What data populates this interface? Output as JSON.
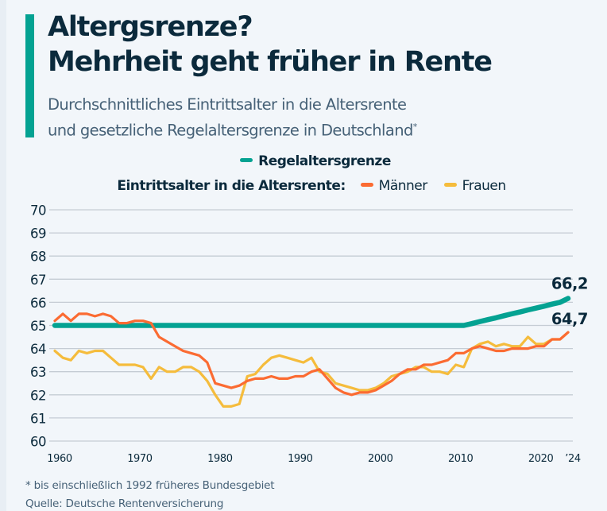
{
  "header": {
    "title_line1": "Altergsrenze?",
    "title_line2": "Mehrheit geht früher in Rente",
    "subtitle_line1": "Durchschnittliches Eintrittsalter in die Altersrente",
    "subtitle_line2": "und gesetzliche Regelaltersgrenze in Deutschland",
    "subtitle_mark": "*"
  },
  "legend": {
    "regel_label": "Regelaltersgrenze",
    "group_label": "Eintrittsalter in die Altersrente:",
    "maenner_label": "Männer",
    "frauen_label": "Frauen"
  },
  "colors": {
    "accent": "#04a292",
    "regel": "#04a292",
    "maenner": "#fb6b32",
    "frauen": "#f5bc3c",
    "grid": "#c5ccd4",
    "text": "#0b2a3c"
  },
  "footer": {
    "footnote": "* bis einschließlich 1992 früheres Bundesgebiet",
    "source": "Quelle: Deutsche Rentenversicherung"
  },
  "chart_data": {
    "type": "line",
    "title": "Altergsrenze? Mehrheit geht früher in Rente",
    "subtitle": "Durchschnittliches Eintrittsalter in die Altersrente und gesetzliche Regelaltersgrenze in Deutschland*",
    "xlabel": "",
    "ylabel": "",
    "ylim": [
      60,
      70
    ],
    "xlim": [
      1960,
      2024
    ],
    "grid": true,
    "legend_position": "top-center",
    "y_ticks": [
      "60",
      "61",
      "62",
      "63",
      "64",
      "65",
      "66",
      "67",
      "68",
      "69",
      "70"
    ],
    "x_ticks": [
      {
        "year": 1960,
        "label": "1960"
      },
      {
        "year": 1970,
        "label": "1970"
      },
      {
        "year": 1980,
        "label": "1980"
      },
      {
        "year": 1990,
        "label": "1990"
      },
      {
        "year": 2000,
        "label": "2000"
      },
      {
        "year": 2010,
        "label": "2010"
      },
      {
        "year": 2020,
        "label": "2020"
      },
      {
        "year": 2024,
        "label": "’24"
      }
    ],
    "x": [
      1960,
      1961,
      1962,
      1963,
      1964,
      1965,
      1966,
      1967,
      1968,
      1969,
      1970,
      1971,
      1972,
      1973,
      1974,
      1975,
      1976,
      1977,
      1978,
      1979,
      1980,
      1981,
      1982,
      1983,
      1984,
      1985,
      1986,
      1987,
      1988,
      1989,
      1990,
      1991,
      1992,
      1993,
      1994,
      1995,
      1996,
      1997,
      1998,
      1999,
      2000,
      2001,
      2002,
      2003,
      2004,
      2005,
      2006,
      2007,
      2008,
      2009,
      2010,
      2011,
      2012,
      2013,
      2014,
      2015,
      2016,
      2017,
      2018,
      2019,
      2020,
      2021,
      2022,
      2023,
      2024
    ],
    "series": [
      {
        "name": "Regelaltersgrenze",
        "key": "regel",
        "end_label": "66,2",
        "values": [
          65,
          65,
          65,
          65,
          65,
          65,
          65,
          65,
          65,
          65,
          65,
          65,
          65,
          65,
          65,
          65,
          65,
          65,
          65,
          65,
          65,
          65,
          65,
          65,
          65,
          65,
          65,
          65,
          65,
          65,
          65,
          65,
          65,
          65,
          65,
          65,
          65,
          65,
          65,
          65,
          65,
          65,
          65,
          65,
          65,
          65,
          65,
          65,
          65,
          65,
          65,
          65,
          65.08,
          65.17,
          65.25,
          65.33,
          65.42,
          65.5,
          65.58,
          65.67,
          65.75,
          65.83,
          65.92,
          66.0,
          66.17
        ]
      },
      {
        "name": "Männer",
        "key": "maenner",
        "end_label": "64,7",
        "values": [
          65.2,
          65.5,
          65.2,
          65.5,
          65.5,
          65.4,
          65.5,
          65.4,
          65.1,
          65.1,
          65.2,
          65.2,
          65.1,
          64.5,
          64.3,
          64.1,
          63.9,
          63.8,
          63.7,
          63.4,
          62.5,
          62.4,
          62.3,
          62.4,
          62.6,
          62.7,
          62.7,
          62.8,
          62.7,
          62.7,
          62.8,
          62.8,
          63.0,
          63.1,
          62.7,
          62.3,
          62.1,
          62.0,
          62.1,
          62.1,
          62.2,
          62.4,
          62.6,
          62.9,
          63.1,
          63.1,
          63.3,
          63.3,
          63.4,
          63.5,
          63.8,
          63.8,
          64.0,
          64.1,
          64.0,
          63.9,
          63.9,
          64.0,
          64.0,
          64.0,
          64.1,
          64.1,
          64.4,
          64.4,
          64.7
        ]
      },
      {
        "name": "Frauen",
        "key": "frauen",
        "values": [
          63.9,
          63.6,
          63.5,
          63.9,
          63.8,
          63.9,
          63.9,
          63.6,
          63.3,
          63.3,
          63.3,
          63.2,
          62.7,
          63.2,
          63.0,
          63.0,
          63.2,
          63.2,
          63.0,
          62.6,
          62.0,
          61.5,
          61.5,
          61.6,
          62.8,
          62.9,
          63.3,
          63.6,
          63.7,
          63.6,
          63.5,
          63.4,
          63.6,
          63.0,
          62.9,
          62.5,
          62.4,
          62.3,
          62.2,
          62.2,
          62.3,
          62.5,
          62.8,
          62.9,
          63.0,
          63.2,
          63.2,
          63.0,
          63.0,
          62.9,
          63.3,
          63.2,
          64.0,
          64.2,
          64.3,
          64.1,
          64.2,
          64.1,
          64.1,
          64.5,
          64.2,
          64.2,
          64.4,
          64.4,
          64.7
        ]
      }
    ]
  }
}
